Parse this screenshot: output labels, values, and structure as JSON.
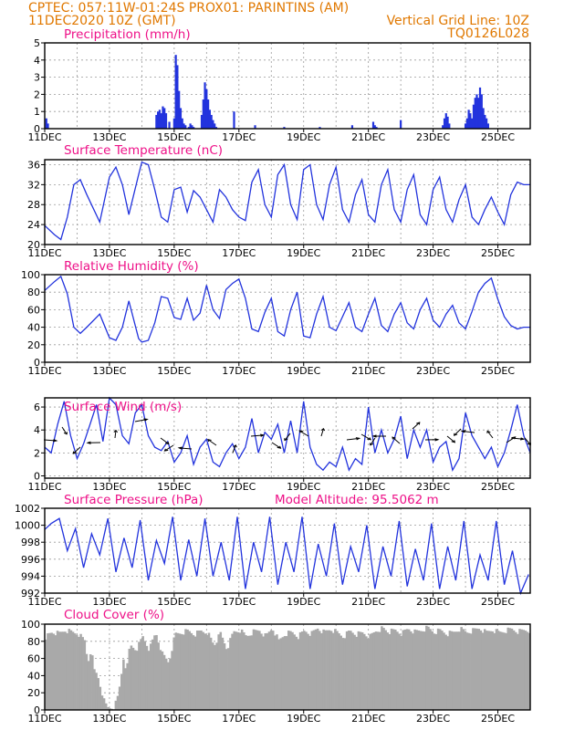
{
  "header": {
    "line1": "CPTEC:   057:11W-01:24S   PROX01: PARINTINS (AM)",
    "line2": "11DEC2020 10Z (GMT)",
    "grid_note": "Vertical Grid Line: 10Z",
    "code": "TQ0126L028"
  },
  "colors": {
    "line": "#2233dd",
    "header": "#e07800",
    "title": "#ee1188",
    "cloud": "#a9a9a9",
    "arrow": "#000000"
  },
  "chart_data": [
    {
      "type": "bar",
      "title": "Precipitation (mm/h)",
      "x_labels": [
        "11DEC",
        "13DEC",
        "15DEC",
        "17DEC",
        "19DEC",
        "21DEC",
        "23DEC",
        "25DEC"
      ],
      "x_unit": "days from 11DEC 10Z",
      "xlim": [
        0,
        15
      ],
      "ylim": [
        0,
        5
      ],
      "yticks": [
        0,
        1,
        2,
        3,
        4,
        5
      ],
      "x": [
        0.05,
        0.1,
        3.45,
        3.5,
        3.55,
        3.6,
        3.65,
        3.7,
        3.75,
        3.85,
        4.0,
        4.05,
        4.1,
        4.15,
        4.2,
        4.25,
        4.3,
        4.35,
        4.45,
        4.5,
        4.55,
        4.6,
        4.85,
        4.9,
        4.95,
        5.0,
        5.05,
        5.1,
        5.15,
        5.2,
        5.25,
        5.3,
        5.85,
        6.5,
        7.4,
        8.5,
        9.5,
        10.15,
        10.2,
        10.25,
        11.0,
        12.3,
        12.35,
        12.4,
        12.45,
        12.5,
        13.0,
        13.05,
        13.1,
        13.15,
        13.2,
        13.25,
        13.3,
        13.35,
        13.4,
        13.45,
        13.5,
        13.55,
        13.6,
        13.65,
        13.7
      ],
      "values": [
        0.6,
        0.3,
        0.8,
        1.0,
        1.1,
        0.9,
        1.3,
        1.2,
        0.9,
        0.4,
        0.6,
        4.3,
        3.7,
        2.2,
        1.2,
        0.6,
        0.3,
        0.2,
        0.1,
        0.3,
        0.2,
        0.1,
        0.8,
        1.7,
        2.7,
        2.3,
        1.7,
        1.1,
        0.8,
        0.5,
        0.3,
        0.1,
        1.0,
        0.2,
        0.1,
        0.1,
        0.2,
        0.4,
        0.2,
        0.1,
        0.5,
        0.2,
        0.6,
        0.9,
        0.7,
        0.3,
        0.3,
        0.6,
        1.1,
        0.9,
        0.6,
        1.4,
        1.8,
        2.0,
        1.8,
        2.4,
        2.0,
        1.2,
        0.8,
        0.6,
        0.3
      ]
    },
    {
      "type": "line",
      "title": "Surface Temperature (nC)",
      "x_labels": [
        "11DEC",
        "13DEC",
        "15DEC",
        "17DEC",
        "19DEC",
        "21DEC",
        "23DEC",
        "25DEC"
      ],
      "xlim": [
        0,
        15
      ],
      "ylim": [
        20,
        37
      ],
      "yticks": [
        20,
        24,
        28,
        32,
        36
      ],
      "x": [
        0,
        0.3,
        0.5,
        0.7,
        0.9,
        1.1,
        1.3,
        1.7,
        2.0,
        2.2,
        2.4,
        2.6,
        2.9,
        3.0,
        3.2,
        3.4,
        3.6,
        3.8,
        4.0,
        4.2,
        4.4,
        4.6,
        4.8,
        5.0,
        5.2,
        5.4,
        5.6,
        5.8,
        6.0,
        6.2,
        6.4,
        6.6,
        6.8,
        7.0,
        7.2,
        7.4,
        7.6,
        7.8,
        8.0,
        8.2,
        8.4,
        8.6,
        8.8,
        9.0,
        9.2,
        9.4,
        9.6,
        9.8,
        10.0,
        10.2,
        10.4,
        10.6,
        10.8,
        11.0,
        11.2,
        11.4,
        11.6,
        11.8,
        12.0,
        12.2,
        12.4,
        12.6,
        12.8,
        13.0,
        13.2,
        13.4,
        13.6,
        13.8,
        14.0,
        14.2,
        14.4,
        14.6,
        14.8,
        15.0
      ],
      "values": [
        23.8,
        22,
        21,
        25.5,
        32,
        33,
        30,
        24.5,
        33.5,
        35.5,
        32,
        26,
        34,
        36.5,
        36,
        31,
        25.5,
        24.5,
        31,
        31.5,
        26.5,
        30.8,
        29.5,
        27,
        24.5,
        31,
        29.5,
        27,
        25.5,
        24.8,
        32.5,
        35,
        28,
        25.5,
        34,
        36,
        28,
        25,
        35,
        36,
        28,
        25,
        32,
        35.5,
        27,
        24.5,
        30,
        33,
        26,
        24.5,
        32,
        35,
        27,
        24.5,
        31,
        34,
        26,
        24,
        31,
        33.5,
        27,
        24.5,
        29,
        32,
        25.5,
        24,
        27,
        29.5,
        26.5,
        24,
        30,
        32.5,
        32,
        32
      ]
    },
    {
      "type": "line",
      "title": "Relative Humidity (%)",
      "x_labels": [
        "11DEC",
        "13DEC",
        "15DEC",
        "17DEC",
        "19DEC",
        "21DEC",
        "23DEC",
        "25DEC"
      ],
      "xlim": [
        0,
        15
      ],
      "ylim": [
        0,
        100
      ],
      "yticks": [
        0,
        20,
        40,
        60,
        80,
        100
      ],
      "x": [
        0,
        0.3,
        0.5,
        0.7,
        0.9,
        1.1,
        1.3,
        1.7,
        2.0,
        2.2,
        2.4,
        2.6,
        2.9,
        3.0,
        3.2,
        3.4,
        3.6,
        3.8,
        4.0,
        4.2,
        4.4,
        4.6,
        4.8,
        5.0,
        5.2,
        5.4,
        5.6,
        5.8,
        6.0,
        6.2,
        6.4,
        6.6,
        6.8,
        7.0,
        7.2,
        7.4,
        7.6,
        7.8,
        8.0,
        8.2,
        8.4,
        8.6,
        8.8,
        9.0,
        9.2,
        9.4,
        9.6,
        9.8,
        10.0,
        10.2,
        10.4,
        10.6,
        10.8,
        11.0,
        11.2,
        11.4,
        11.6,
        11.8,
        12.0,
        12.2,
        12.4,
        12.6,
        12.8,
        13.0,
        13.2,
        13.4,
        13.6,
        13.8,
        14.0,
        14.2,
        14.4,
        14.6,
        14.8,
        15.0
      ],
      "values": [
        82,
        92,
        98,
        78,
        40,
        33,
        40,
        55,
        28,
        25,
        40,
        70,
        27,
        23,
        25,
        45,
        75,
        73,
        51,
        49,
        73,
        48,
        56,
        88,
        60,
        50,
        83,
        90,
        95,
        73,
        38,
        35,
        57,
        73,
        35,
        30,
        60,
        80,
        30,
        28,
        55,
        75,
        40,
        36,
        52,
        68,
        40,
        35,
        55,
        73,
        42,
        35,
        55,
        68,
        45,
        38,
        60,
        73,
        48,
        40,
        55,
        65,
        45,
        38,
        58,
        80,
        90,
        96,
        72,
        52,
        42,
        38,
        40,
        40
      ]
    },
    {
      "type": "line",
      "title": "Surface Wind (m/s)",
      "x_labels": [
        "11DEC",
        "13DEC",
        "15DEC",
        "17DEC",
        "19DEC",
        "21DEC",
        "23DEC",
        "25DEC"
      ],
      "xlim": [
        0,
        15
      ],
      "ylim": [
        -0.2,
        6.8
      ],
      "yticks": [
        0,
        2,
        4,
        6
      ],
      "x": [
        0,
        0.2,
        0.4,
        0.6,
        0.8,
        1.0,
        1.2,
        1.4,
        1.6,
        1.8,
        2.0,
        2.2,
        2.4,
        2.6,
        2.8,
        3.0,
        3.2,
        3.4,
        3.6,
        3.8,
        4.0,
        4.2,
        4.4,
        4.6,
        4.8,
        5.0,
        5.2,
        5.4,
        5.6,
        5.8,
        6.0,
        6.2,
        6.4,
        6.6,
        6.8,
        7.0,
        7.2,
        7.4,
        7.6,
        7.8,
        8.0,
        8.2,
        8.4,
        8.6,
        8.8,
        9.0,
        9.2,
        9.4,
        9.6,
        9.8,
        10.0,
        10.2,
        10.4,
        10.6,
        10.8,
        11.0,
        11.2,
        11.4,
        11.6,
        11.8,
        12.0,
        12.2,
        12.4,
        12.6,
        12.8,
        13.0,
        13.2,
        13.4,
        13.6,
        13.8,
        14.0,
        14.2,
        14.4,
        14.6,
        14.8,
        15.0
      ],
      "values": [
        2.5,
        2.0,
        4.5,
        6.5,
        3.5,
        1.5,
        2.8,
        4.5,
        6.2,
        3.0,
        6.8,
        6.2,
        3.5,
        2.8,
        5.5,
        6.2,
        3.5,
        2.5,
        2.2,
        3.0,
        1.2,
        2.0,
        3.5,
        1.0,
        2.5,
        3.2,
        1.2,
        0.8,
        2.0,
        2.8,
        1.5,
        2.5,
        5.0,
        2.0,
        3.8,
        3.2,
        4.5,
        2.0,
        4.8,
        2.0,
        6.5,
        2.5,
        1.0,
        0.5,
        1.2,
        0.8,
        2.5,
        0.5,
        1.5,
        1.0,
        6.0,
        2.0,
        4.0,
        2.0,
        3.2,
        5.2,
        1.5,
        4.0,
        2.5,
        4.0,
        1.2,
        2.5,
        3.0,
        0.5,
        1.5,
        5.5,
        3.5,
        2.5,
        1.5,
        2.5,
        0.8,
        2.0,
        4.0,
        6.2,
        3.5,
        2.0
      ]
    },
    {
      "type": "line",
      "title": "Surface Pressure (hPa)",
      "annotation": "Model Altitude: 95.5062 m",
      "x_labels": [
        "11DEC",
        "13DEC",
        "15DEC",
        "17DEC",
        "19DEC",
        "21DEC",
        "23DEC",
        "25DEC"
      ],
      "xlim": [
        0,
        15
      ],
      "ylim": [
        992,
        1002
      ],
      "yticks": [
        992,
        994,
        996,
        998,
        1000,
        1002
      ],
      "x": [
        0,
        0.2,
        0.45,
        0.7,
        0.95,
        1.2,
        1.45,
        1.7,
        1.95,
        2.2,
        2.45,
        2.7,
        2.95,
        3.2,
        3.45,
        3.7,
        3.95,
        4.2,
        4.45,
        4.7,
        4.95,
        5.2,
        5.45,
        5.7,
        5.95,
        6.2,
        6.45,
        6.7,
        6.95,
        7.2,
        7.45,
        7.7,
        7.95,
        8.2,
        8.45,
        8.7,
        8.95,
        9.2,
        9.45,
        9.7,
        9.95,
        10.2,
        10.45,
        10.7,
        10.95,
        11.2,
        11.45,
        11.7,
        11.95,
        12.2,
        12.45,
        12.7,
        12.95,
        13.2,
        13.45,
        13.7,
        13.95,
        14.2,
        14.45,
        14.7,
        14.95
      ],
      "values": [
        999.5,
        1000.2,
        1000.8,
        997,
        999.6,
        995,
        999,
        996.5,
        1000.8,
        994.5,
        998.5,
        995,
        1000.6,
        993.5,
        998.2,
        995.5,
        1001,
        993.5,
        998.3,
        994,
        1000.8,
        994,
        998,
        993.5,
        1001,
        992.5,
        998,
        994.5,
        1001,
        993,
        998,
        994.5,
        1001,
        992.5,
        997.8,
        994,
        1000.2,
        993,
        997.5,
        994.5,
        1000,
        992.5,
        997.5,
        994,
        1000.5,
        992.8,
        997.2,
        993.5,
        1000.2,
        992.5,
        997.5,
        993.5,
        1000.5,
        992.5,
        996.5,
        993.5,
        1000.5,
        993,
        997,
        991.5,
        994.2
      ]
    },
    {
      "type": "area",
      "title": "Cloud Cover (%)",
      "x_labels": [
        "11DEC",
        "13DEC",
        "15DEC",
        "17DEC",
        "19DEC",
        "21DEC",
        "23DEC",
        "25DEC"
      ],
      "xlim": [
        0,
        15
      ],
      "ylim": [
        0,
        100
      ],
      "yticks": [
        0,
        20,
        40,
        60,
        80,
        100
      ],
      "x": [
        0,
        0.2,
        0.4,
        0.6,
        0.8,
        1.0,
        1.2,
        1.3,
        1.4,
        1.5,
        1.6,
        1.7,
        1.8,
        1.9,
        2.0,
        2.1,
        2.2,
        2.3,
        2.4,
        2.5,
        2.6,
        2.8,
        3.0,
        3.2,
        3.4,
        3.6,
        3.8,
        4.0,
        4.2,
        4.4,
        4.6,
        4.8,
        5.0,
        5.2,
        5.4,
        5.6,
        5.8,
        6.0,
        6.2,
        6.4,
        6.6,
        6.8,
        7.0,
        7.2,
        7.4,
        7.6,
        7.8,
        8.0,
        8.2,
        8.4,
        8.6,
        8.8,
        9.0,
        9.2,
        9.4,
        9.6,
        9.8,
        10.0,
        10.2,
        10.4,
        10.6,
        10.8,
        11.0,
        11.2,
        11.4,
        11.6,
        11.8,
        12.0,
        12.2,
        12.4,
        12.6,
        12.8,
        13.0,
        13.2,
        13.4,
        13.6,
        13.8,
        14.0,
        14.2,
        14.4,
        14.6,
        14.8,
        15.0
      ],
      "values": [
        85,
        90,
        88,
        92,
        90,
        88,
        80,
        55,
        70,
        45,
        40,
        25,
        10,
        2,
        2,
        3,
        10,
        30,
        60,
        45,
        75,
        70,
        85,
        70,
        90,
        65,
        55,
        88,
        90,
        92,
        88,
        92,
        90,
        75,
        88,
        70,
        90,
        92,
        85,
        90,
        92,
        85,
        95,
        80,
        88,
        90,
        85,
        92,
        88,
        95,
        90,
        94,
        90,
        85,
        92,
        88,
        90,
        85,
        92,
        95,
        90,
        92,
        88,
        94,
        90,
        92,
        95,
        90,
        92,
        88,
        90,
        94,
        90,
        92,
        95,
        90,
        93,
        90,
        92,
        94,
        91,
        93,
        92
      ]
    }
  ]
}
